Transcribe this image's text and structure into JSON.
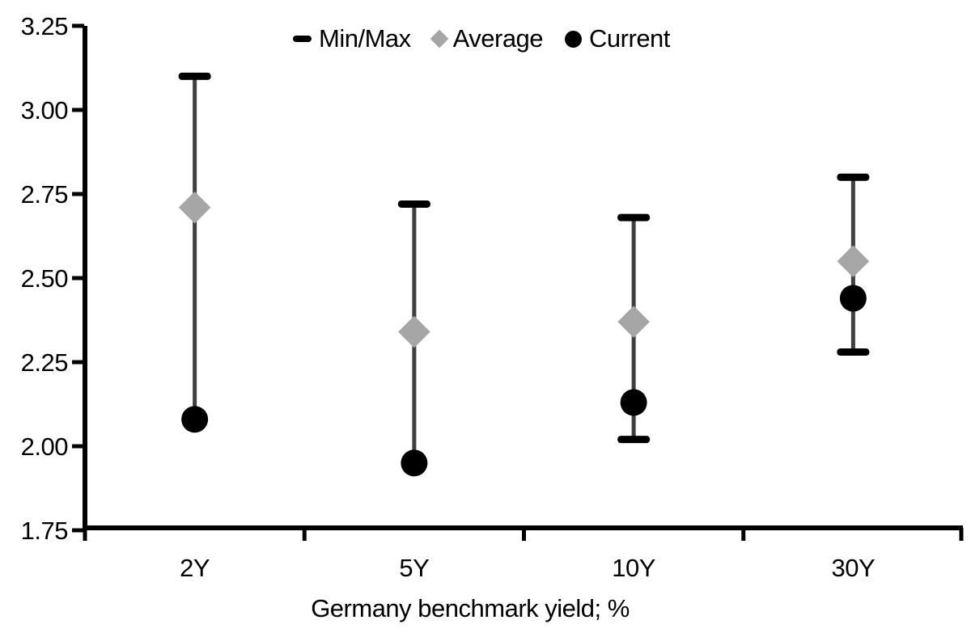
{
  "chart_data": {
    "type": "scatter",
    "title": "",
    "xlabel": "Germany benchmark yield; %",
    "ylabel": "",
    "ylim": [
      1.75,
      3.25
    ],
    "ytick_step": 0.25,
    "ytick_labels": [
      "1.75",
      "2.00",
      "2.25",
      "2.50",
      "2.75",
      "3.00",
      "3.25"
    ],
    "categories": [
      "2Y",
      "5Y",
      "10Y",
      "30Y"
    ],
    "grid": "off",
    "legend_position": "top",
    "series": [
      {
        "name": "Min/Max",
        "marker": "dash",
        "color": "#000000",
        "line_color": "#3f3f3f",
        "min": [
          2.08,
          1.95,
          2.02,
          2.28
        ],
        "max": [
          3.1,
          2.72,
          2.68,
          2.8
        ]
      },
      {
        "name": "Average",
        "marker": "diamond",
        "color": "#a6a6a6",
        "values": [
          2.71,
          2.34,
          2.37,
          2.55
        ]
      },
      {
        "name": "Current",
        "marker": "circle",
        "color": "#000000",
        "values": [
          2.08,
          1.95,
          2.13,
          2.44
        ]
      }
    ]
  },
  "colors": {
    "axis": "#000000",
    "text": "#000000",
    "background": "#ffffff"
  }
}
